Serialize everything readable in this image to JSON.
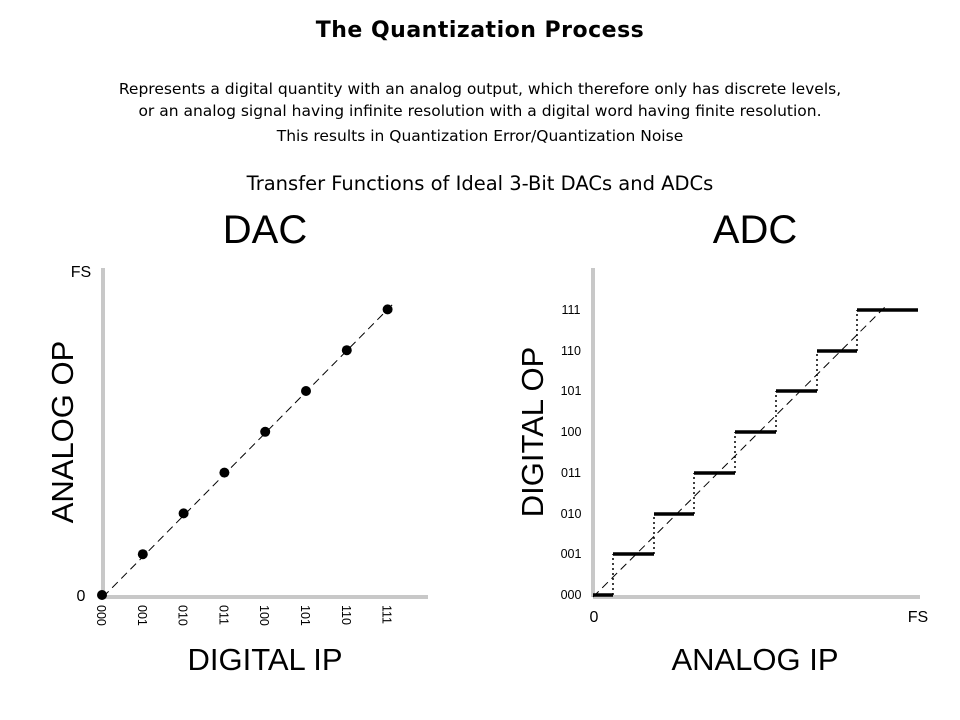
{
  "title": "The Quantization Process",
  "description": {
    "line1": "Represents a digital quantity with an analog output, which therefore only has discrete levels,",
    "line2": "or an analog signal having infinite resolution with a digital word having finite resolution.",
    "line3": "This results in Quantization Error/Quantization Noise"
  },
  "subtitle": "Transfer Functions of Ideal 3-Bit DACs and ADCs",
  "dac": {
    "heading": "DAC",
    "y_axis_label": "ANALOG OP",
    "x_axis_label": "DIGITAL IP",
    "y_top_label": "FS",
    "y_zero_label": "0",
    "x_codes": [
      "000",
      "001",
      "010",
      "011",
      "100",
      "101",
      "110",
      "111"
    ]
  },
  "adc": {
    "heading": "ADC",
    "y_axis_label": "DIGITAL OP",
    "x_axis_label": "ANALOG IP",
    "x_zero_label": "0",
    "x_end_label": "FS",
    "y_codes": [
      "000",
      "001",
      "010",
      "011",
      "100",
      "101",
      "110",
      "111"
    ]
  },
  "colors": {
    "line": "#000000",
    "axis": "#c8c8c8"
  }
}
